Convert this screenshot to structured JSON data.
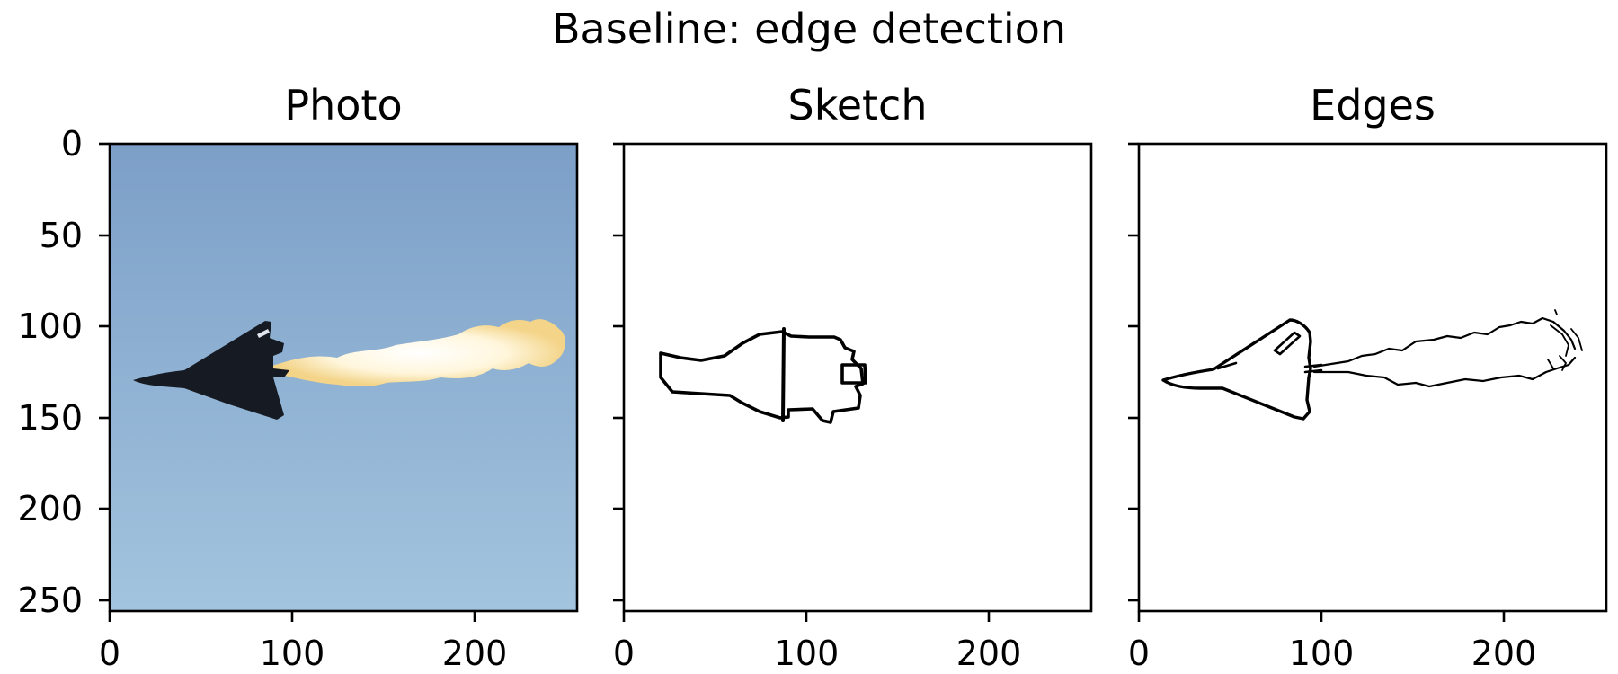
{
  "figure": {
    "suptitle": "Baseline: edge detection"
  },
  "chart_data": [
    {
      "type": "image",
      "title": "Photo",
      "content": "fighter jet with afterburner flame against a blue sky",
      "image_size": [
        256,
        256
      ],
      "xlim": [
        0,
        256
      ],
      "ylim": [
        256,
        0
      ],
      "xticks": [
        0,
        100,
        200
      ],
      "yticks": [
        0,
        50,
        100,
        150,
        200,
        250
      ],
      "show_yticklabels": true,
      "colors": {
        "sky_top": "#7c9fc8",
        "sky_bottom": "#a3c4de",
        "aircraft": "#161a22",
        "flame_core": "#fffbe8",
        "flame_edge": "#f3d488"
      }
    },
    {
      "type": "image",
      "title": "Sketch",
      "content": "black line sketch of the aircraft on white",
      "image_size": [
        256,
        256
      ],
      "xlim": [
        0,
        256
      ],
      "ylim": [
        256,
        0
      ],
      "xticks": [
        0,
        100,
        200
      ],
      "yticks": [
        0,
        50,
        100,
        150,
        200,
        250
      ],
      "show_yticklabels": false
    },
    {
      "type": "image",
      "title": "Edges",
      "content": "black edge map of the aircraft and exhaust plume on white",
      "image_size": [
        256,
        256
      ],
      "xlim": [
        0,
        256
      ],
      "ylim": [
        256,
        0
      ],
      "xticks": [
        0,
        100,
        200
      ],
      "yticks": [
        0,
        50,
        100,
        150,
        200,
        250
      ],
      "show_yticklabels": false
    }
  ]
}
